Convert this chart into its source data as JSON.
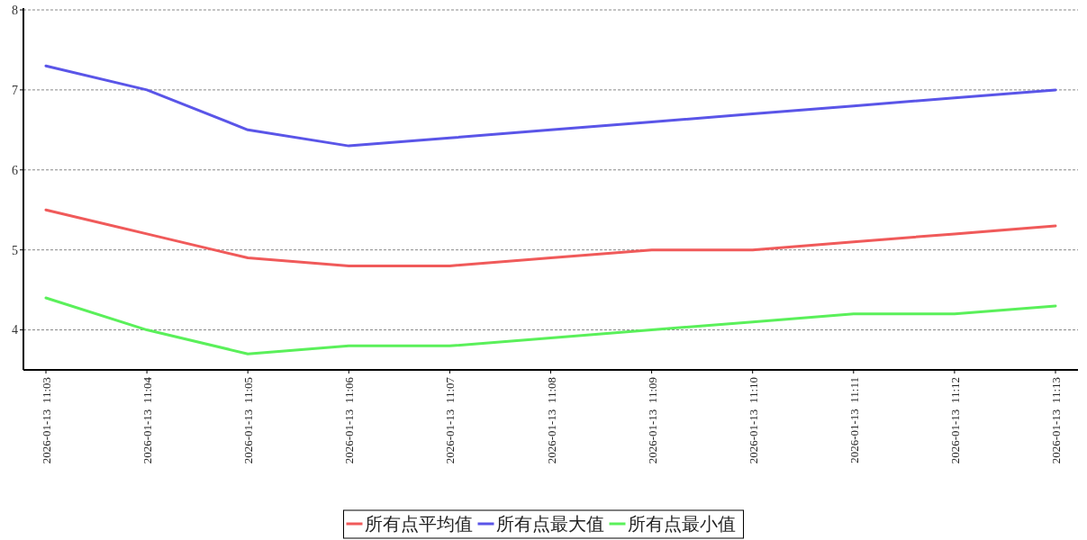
{
  "chart_data": {
    "type": "line",
    "categories": [
      "2026-01-13  11:03",
      "2026-01-13  11:04",
      "2026-01-13  11:05",
      "2026-01-13  11:06",
      "2026-01-13  11:07",
      "2026-01-13  11:08",
      "2026-01-13  11:09",
      "2026-01-13  11:10",
      "2026-01-13  11:11",
      "2026-01-13  11:12",
      "2026-01-13  11:13"
    ],
    "series": [
      {
        "name": "所有点平均值",
        "color": "#f05a5a",
        "values": [
          5.5,
          5.2,
          4.9,
          4.8,
          4.8,
          4.9,
          5.0,
          5.0,
          5.1,
          5.2,
          5.3
        ]
      },
      {
        "name": "所有点最大值",
        "color": "#5a55e8",
        "values": [
          7.3,
          7.0,
          6.5,
          6.3,
          6.4,
          6.5,
          6.6,
          6.7,
          6.8,
          6.9,
          7.0
        ]
      },
      {
        "name": "所有点最小值",
        "color": "#5af05a",
        "values": [
          4.4,
          4.0,
          3.7,
          3.8,
          3.8,
          3.9,
          4.0,
          4.1,
          4.2,
          4.2,
          4.3
        ]
      }
    ],
    "ylim": [
      3.5,
      8
    ],
    "yticks": [
      4,
      5,
      6,
      7,
      8
    ],
    "grid": "y",
    "legend": "bottom",
    "marker": "none",
    "line_style": "solid"
  }
}
